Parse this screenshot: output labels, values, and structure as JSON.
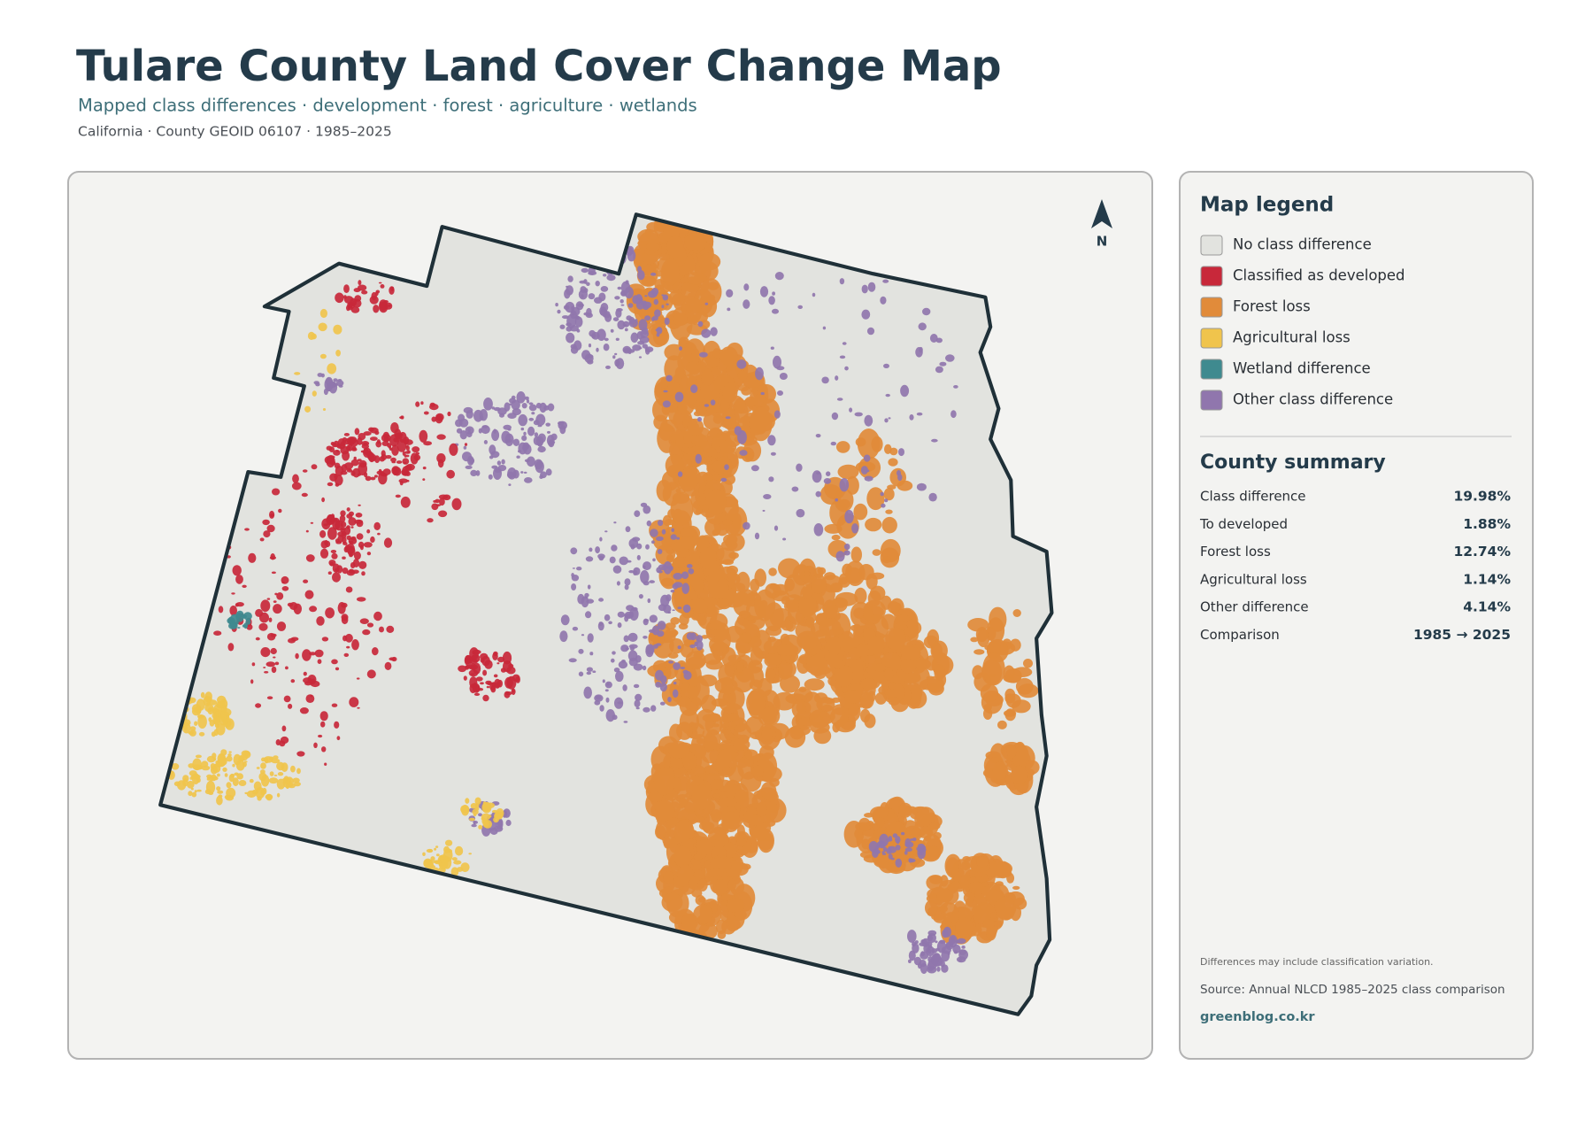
{
  "header": {
    "title": "Tulare County Land Cover Change Map",
    "subtitle": "Mapped class differences · development · forest · agriculture · wetlands",
    "meta": "California · County GEOID 06107 · 1985–2025"
  },
  "map": {
    "north_label": "N"
  },
  "legend": {
    "title": "Map legend",
    "items": [
      {
        "label": "No class difference",
        "color": "#e2e3df"
      },
      {
        "label": "Classified as developed",
        "color": "#c8283a"
      },
      {
        "label": "Forest loss",
        "color": "#e18b3a"
      },
      {
        "label": "Agricultural loss",
        "color": "#f0c44c"
      },
      {
        "label": "Wetland difference",
        "color": "#3f8a8f"
      },
      {
        "label": "Other class difference",
        "color": "#9076ad"
      }
    ]
  },
  "summary": {
    "title": "County summary",
    "rows": [
      [
        "Class difference",
        "19.98%"
      ],
      [
        "To developed",
        "1.88%"
      ],
      [
        "Forest loss",
        "12.74%"
      ],
      [
        "Agricultural loss",
        "1.14%"
      ],
      [
        "Other difference",
        "4.14%"
      ],
      [
        "Comparison",
        "1985 → 2025"
      ]
    ]
  },
  "footer": {
    "note": "Differences may include classification variation.",
    "source": "Source: Annual NLCD 1985–2025 class comparison",
    "site": "greenblog.co.kr"
  }
}
